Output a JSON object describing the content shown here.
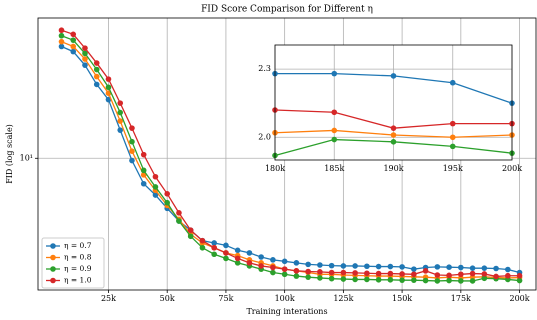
{
  "chart_data": {
    "type": "line",
    "title": "FID Score Comparison for Different η",
    "xlabel": "Training interations",
    "ylabel": "FID (log scale)",
    "log_y": true,
    "grid": true,
    "legend": "lower left",
    "x": [
      5000,
      10000,
      15000,
      20000,
      25000,
      30000,
      35000,
      40000,
      45000,
      50000,
      55000,
      60000,
      65000,
      70000,
      75000,
      80000,
      85000,
      90000,
      95000,
      100000,
      105000,
      110000,
      115000,
      120000,
      125000,
      130000,
      135000,
      140000,
      145000,
      150000,
      155000,
      160000,
      165000,
      170000,
      175000,
      180000,
      185000,
      190000,
      195000,
      200000
    ],
    "xlim": [
      -5000,
      207000
    ],
    "xticks": [
      {
        "value": 25000,
        "label": "25k"
      },
      {
        "value": 50000,
        "label": "50k"
      },
      {
        "value": 75000,
        "label": "75k"
      },
      {
        "value": 100000,
        "label": "100k"
      },
      {
        "value": 125000,
        "label": "125k"
      },
      {
        "value": 150000,
        "label": "150k"
      },
      {
        "value": 175000,
        "label": "175k"
      },
      {
        "value": 200000,
        "label": "200k"
      }
    ],
    "ylim": [
      1.7,
      66
    ],
    "yticks": [
      {
        "value": 10,
        "label": "10¹"
      }
    ],
    "series": [
      {
        "name": "η = 0.7",
        "color": "#1f77b4",
        "values": [
          45,
          42,
          35,
          27,
          22,
          14.6,
          9.7,
          7.1,
          6.1,
          5.1,
          4.3,
          3.8,
          3.3,
          3.2,
          3.1,
          2.9,
          2.8,
          2.65,
          2.55,
          2.5,
          2.45,
          2.4,
          2.38,
          2.36,
          2.35,
          2.35,
          2.34,
          2.33,
          2.33,
          2.32,
          2.25,
          2.3,
          2.32,
          2.31,
          2.3,
          2.28,
          2.28,
          2.27,
          2.24,
          2.15
        ]
      },
      {
        "name": "η = 0.8",
        "color": "#ff7f0e",
        "values": [
          48,
          45,
          38,
          30,
          24,
          16.5,
          11,
          8,
          6.5,
          5.3,
          4.4,
          3.6,
          3.2,
          3.0,
          2.8,
          2.7,
          2.55,
          2.45,
          2.35,
          2.25,
          2.2,
          2.15,
          2.1,
          2.1,
          2.08,
          2.07,
          2.06,
          2.05,
          2.05,
          2.04,
          2.03,
          2.02,
          2.0,
          2.02,
          2.0,
          2.02,
          2.03,
          2.01,
          2.0,
          2.01
        ]
      },
      {
        "name": "η = 0.9",
        "color": "#2ca02c",
        "values": [
          52,
          49,
          41,
          33,
          26,
          18.5,
          12.5,
          8.5,
          6.8,
          5.5,
          4.3,
          3.5,
          3.0,
          2.75,
          2.6,
          2.45,
          2.35,
          2.25,
          2.15,
          2.1,
          2.05,
          2.02,
          2.0,
          1.98,
          1.97,
          1.96,
          1.96,
          1.95,
          1.95,
          1.94,
          1.94,
          1.93,
          1.92,
          1.93,
          1.92,
          1.92,
          1.99,
          1.98,
          1.96,
          1.93
        ]
      },
      {
        "name": "η = 1.0",
        "color": "#d62728",
        "values": [
          56,
          53,
          44,
          36,
          29,
          21,
          15,
          10.5,
          7.8,
          6.2,
          4.8,
          3.8,
          3.3,
          3.0,
          2.8,
          2.6,
          2.45,
          2.35,
          2.3,
          2.25,
          2.2,
          2.18,
          2.17,
          2.15,
          2.15,
          2.14,
          2.13,
          2.12,
          2.12,
          2.11,
          2.1,
          2.2,
          2.08,
          2.07,
          2.1,
          2.12,
          2.11,
          2.04,
          2.06,
          2.06
        ]
      }
    ],
    "inset": {
      "xlim": [
        180000,
        200000
      ],
      "xticks": [
        {
          "value": 180000,
          "label": "180k"
        },
        {
          "value": 185000,
          "label": "185k"
        },
        {
          "value": 190000,
          "label": "190k"
        },
        {
          "value": 195000,
          "label": "195k"
        },
        {
          "value": 200000,
          "label": "200k"
        }
      ],
      "ylim": [
        1.9,
        2.406
      ],
      "yticks": [
        {
          "value": 2.0,
          "label": "2.0"
        },
        {
          "value": 2.3,
          "label": "2.3"
        }
      ]
    }
  }
}
